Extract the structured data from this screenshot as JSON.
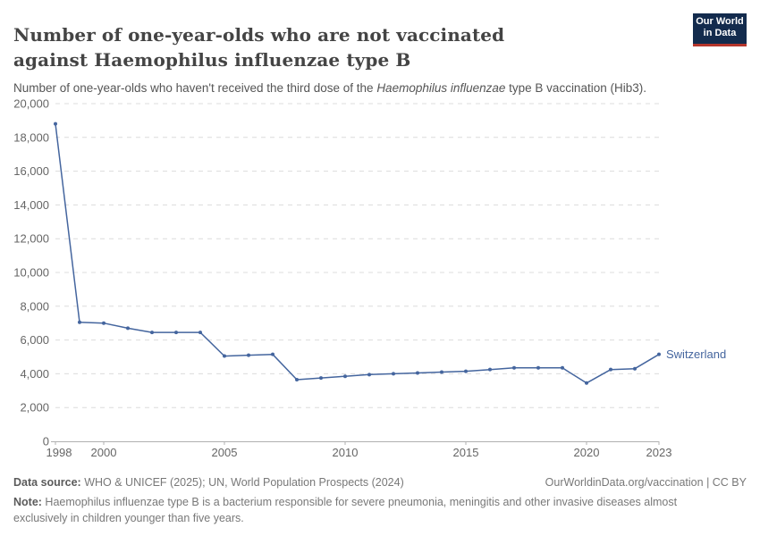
{
  "header": {
    "title": "Number of one-year-olds who are not vaccinated against Haemophilus influenzae type B",
    "logo": {
      "line1": "Our World",
      "line2": "in Data"
    }
  },
  "subtitle": {
    "prefix": "Number of one-year-olds who haven't received the third dose of the ",
    "italic": "Haemophilus influenzae",
    "suffix": " type B vaccination (Hib3)."
  },
  "chart_data": {
    "type": "line",
    "title": "Number of one-year-olds who are not vaccinated against Haemophilus influenzae type B",
    "x": [
      1998,
      1999,
      2000,
      2001,
      2002,
      2003,
      2004,
      2005,
      2006,
      2007,
      2008,
      2009,
      2010,
      2011,
      2012,
      2013,
      2014,
      2015,
      2016,
      2017,
      2018,
      2019,
      2020,
      2021,
      2022,
      2023
    ],
    "series": [
      {
        "name": "Switzerland",
        "color": "#44659E",
        "values": [
          18800,
          7050,
          7000,
          6700,
          6450,
          6450,
          6450,
          5050,
          5100,
          5150,
          3650,
          3750,
          3850,
          3950,
          4000,
          4050,
          4100,
          4150,
          4250,
          4350,
          4350,
          4350,
          3450,
          4250,
          4300,
          5150
        ]
      }
    ],
    "xlabel": "",
    "ylabel": "",
    "ylim": [
      0,
      20000
    ],
    "yticks": [
      0,
      2000,
      4000,
      6000,
      8000,
      10000,
      12000,
      14000,
      16000,
      18000,
      20000
    ],
    "xticks": [
      1998,
      2000,
      2005,
      2010,
      2015,
      2020,
      2023
    ],
    "grid": "horizontal-dashed",
    "legend_position": "end-of-line",
    "entity_label": "Switzerland"
  },
  "footer": {
    "datasource_label": "Data source:",
    "datasource_text": " WHO & UNICEF (2025); UN, World Population Prospects (2024)",
    "rights": "OurWorldinData.org/vaccination | CC BY",
    "note_label": "Note:",
    "note_text": " Haemophilus influenzae type B is a bacterium responsible for severe pneumonia, meningitis and other invasive diseases almost exclusively in children younger than five years."
  },
  "colors": {
    "line": "#44659E",
    "grid": "#dcdcdc",
    "axis": "#b0b0b0",
    "tick_label": "#666666",
    "logo_bg": "#132B4D",
    "logo_red": "#B5352C"
  }
}
